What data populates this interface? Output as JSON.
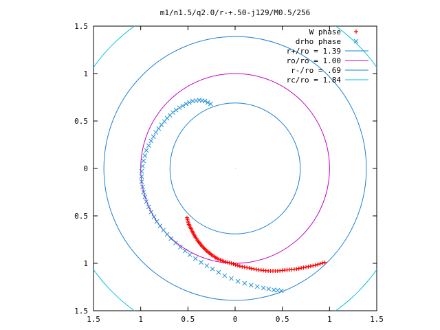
{
  "chart_data": {
    "type": "scatter",
    "title": "m1/n1.5/q2.0/r-+.50-j129/M0.5/256",
    "xlabel": "",
    "ylabel": "",
    "xlim": [
      -1.5,
      1.5
    ],
    "ylim": [
      -1.5,
      1.5
    ],
    "x_tick_values": [
      -1.5,
      -1,
      -0.5,
      0,
      0.5,
      1,
      1.5
    ],
    "x_tick_labels": [
      "1.5",
      "1",
      "0.5",
      "0",
      "0.5",
      "1",
      "1.5"
    ],
    "y_tick_values": [
      1.5,
      1,
      0.5,
      0,
      -0.5,
      -1,
      -1.5
    ],
    "y_tick_labels": [
      "1.5",
      "1",
      "0.5",
      "0",
      "0.5",
      "1",
      "1.5"
    ],
    "grid": false,
    "legend_position": "top-right",
    "colors": {
      "w_phase": "#ff0000",
      "drho_phase": "#1f8fd8",
      "r_plus": "#1a7fd6",
      "r_o": "#c000c0",
      "r_minus": "#1a7fd6",
      "r_c": "#00c0e0"
    },
    "circles": [
      {
        "name": "r+/ro = 1.39",
        "radius": 1.39,
        "color_key": "r_plus"
      },
      {
        "name": "ro/ro = 1.00",
        "radius": 1.0,
        "color_key": "r_o"
      },
      {
        "name": "r-/ro = .69",
        "radius": 0.69,
        "color_key": "r_minus"
      },
      {
        "name": "rc/ro = 1.84",
        "radius": 1.84,
        "color_key": "r_c"
      }
    ],
    "series": [
      {
        "name": "W phase",
        "marker": "plus",
        "color_key": "w_phase",
        "points": [
          [
            -0.51,
            -0.52
          ],
          [
            -0.49,
            -0.59
          ],
          [
            -0.46,
            -0.65
          ],
          [
            -0.43,
            -0.71
          ],
          [
            -0.39,
            -0.77
          ],
          [
            -0.35,
            -0.82
          ],
          [
            -0.3,
            -0.87
          ],
          [
            -0.25,
            -0.91
          ],
          [
            -0.19,
            -0.95
          ],
          [
            -0.12,
            -0.98
          ],
          [
            -0.04,
            -1.0
          ],
          [
            0.05,
            -1.03
          ],
          [
            0.15,
            -1.05
          ],
          [
            0.25,
            -1.07
          ],
          [
            0.35,
            -1.08
          ],
          [
            0.45,
            -1.08
          ],
          [
            0.55,
            -1.07
          ],
          [
            0.65,
            -1.06
          ],
          [
            0.75,
            -1.04
          ],
          [
            0.85,
            -1.02
          ],
          [
            0.95,
            -0.99
          ]
        ]
      },
      {
        "name": "drho phase",
        "marker": "cross",
        "color_key": "drho_phase",
        "points": [
          [
            -0.26,
            0.68
          ],
          [
            -0.32,
            0.71
          ],
          [
            -0.38,
            0.72
          ],
          [
            -0.45,
            0.71
          ],
          [
            -0.52,
            0.68
          ],
          [
            -0.59,
            0.64
          ],
          [
            -0.66,
            0.59
          ],
          [
            -0.72,
            0.53
          ],
          [
            -0.78,
            0.46
          ],
          [
            -0.84,
            0.38
          ],
          [
            -0.89,
            0.29
          ],
          [
            -0.94,
            0.19
          ],
          [
            -0.97,
            0.08
          ],
          [
            -0.99,
            -0.03
          ],
          [
            -0.99,
            -0.14
          ],
          [
            -0.97,
            -0.25
          ],
          [
            -0.94,
            -0.35
          ],
          [
            -0.89,
            -0.46
          ],
          [
            -0.83,
            -0.56
          ],
          [
            -0.76,
            -0.65
          ],
          [
            -0.68,
            -0.74
          ],
          [
            -0.58,
            -0.83
          ],
          [
            -0.48,
            -0.91
          ],
          [
            -0.36,
            -0.99
          ],
          [
            -0.24,
            -1.06
          ],
          [
            -0.11,
            -1.13
          ],
          [
            0.03,
            -1.19
          ],
          [
            0.17,
            -1.23
          ],
          [
            0.3,
            -1.26
          ],
          [
            0.41,
            -1.28
          ],
          [
            0.49,
            -1.29
          ]
        ]
      }
    ]
  }
}
